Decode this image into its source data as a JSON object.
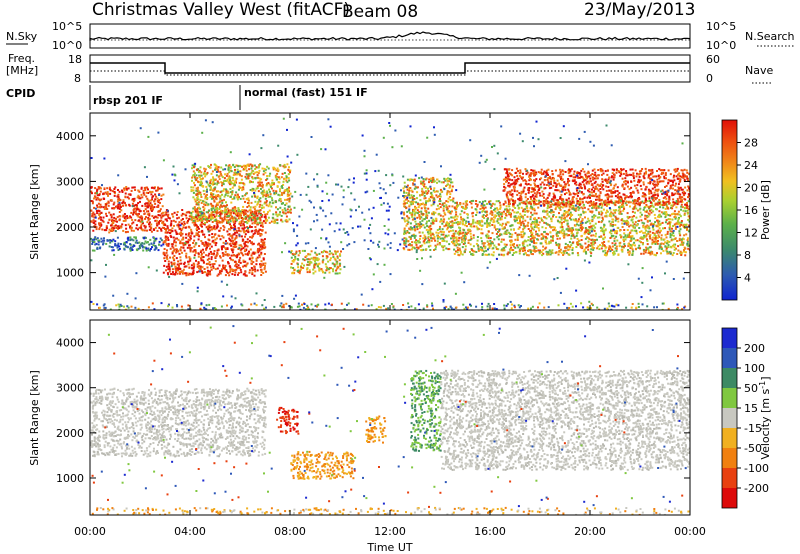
{
  "header": {
    "radar": "Christmas Valley West (fitACF)",
    "beam": "Beam 08",
    "date": "23/May/2013"
  },
  "panels": {
    "nsky": {
      "label": "N.Sky",
      "right_label": "N.Search",
      "ticks": [
        "10^5",
        "10^0"
      ],
      "right_ticks": [
        "10^5",
        "10^0"
      ]
    },
    "freq": {
      "label_line1": "Freq.",
      "label_line2": "[MHz]",
      "right_label": "Nave",
      "ticks": [
        "18",
        "8"
      ],
      "right_ticks": [
        "60",
        "0"
      ]
    },
    "cpid": {
      "label": "CPID",
      "segments": [
        {
          "label": "rbsp 201 IF",
          "start_hour": 0
        },
        {
          "label": "normal (fast) 151 IF",
          "start_hour": 6
        }
      ]
    }
  },
  "axes": {
    "ylabel": "Slant Range [km]",
    "xlabel": "Time UT",
    "x_ticks": [
      "00:00",
      "04:00",
      "08:00",
      "12:00",
      "16:00",
      "20:00",
      "00:00"
    ],
    "y_ticks": [
      "1000",
      "2000",
      "3000",
      "4000"
    ]
  },
  "power_scale": {
    "label": "Power [dB]",
    "ticks": [
      "4",
      "8",
      "12",
      "16",
      "20",
      "24",
      "28"
    ],
    "colors": [
      "#1024d0",
      "#2d5bb0",
      "#3c8a6c",
      "#5bb04a",
      "#a8d030",
      "#f0c020",
      "#f08018",
      "#ee5010",
      "#e01008"
    ]
  },
  "velocity_scale": {
    "label_prefix": "Velocity [m s",
    "label_sup": "-1",
    "label_suffix": "]",
    "ticks": [
      "200",
      "100",
      "50",
      "15",
      "-15",
      "-50",
      "-100",
      "-200"
    ],
    "colors": [
      "#1c2ad0",
      "#2e58b8",
      "#3d8a64",
      "#80c840",
      "#c8c8c0",
      "#f0b020",
      "#f08010",
      "#e84010",
      "#dd0a0a"
    ]
  },
  "chart_data": {
    "type": "heatmap",
    "x_range_hours": [
      0,
      24
    ],
    "y_range_km": [
      180,
      4500
    ],
    "power_bands": [
      {
        "from_h": 0.0,
        "to_h": 2.9,
        "lo_km": 1900,
        "hi_km": 2900,
        "value": "high"
      },
      {
        "from_h": 0.0,
        "to_h": 2.9,
        "lo_km": 1500,
        "hi_km": 1800,
        "value": "low"
      },
      {
        "from_h": 2.9,
        "to_h": 7.0,
        "lo_km": 950,
        "hi_km": 2400,
        "value": "high"
      },
      {
        "from_h": 4.0,
        "to_h": 8.0,
        "lo_km": 2100,
        "hi_km": 3400,
        "value": "mid"
      },
      {
        "from_h": 8.0,
        "to_h": 10.0,
        "lo_km": 1000,
        "hi_km": 1500,
        "value": "mid"
      },
      {
        "from_h": 12.5,
        "to_h": 14.5,
        "lo_km": 1500,
        "hi_km": 3100,
        "value": "mid"
      },
      {
        "from_h": 14.5,
        "to_h": 24.0,
        "lo_km": 1400,
        "hi_km": 2600,
        "value": "mid"
      },
      {
        "from_h": 16.5,
        "to_h": 24.0,
        "lo_km": 2500,
        "hi_km": 3300,
        "value": "high"
      }
    ],
    "velocity_bands": [
      {
        "from_h": 0.0,
        "to_h": 7.0,
        "lo_km": 1500,
        "hi_km": 3000,
        "value": "-15..15"
      },
      {
        "from_h": 7.5,
        "to_h": 8.3,
        "lo_km": 2000,
        "hi_km": 2600,
        "value": "-200"
      },
      {
        "from_h": 8.0,
        "to_h": 10.5,
        "lo_km": 1000,
        "hi_km": 1600,
        "value": "-100"
      },
      {
        "from_h": 11.0,
        "to_h": 11.8,
        "lo_km": 1800,
        "hi_km": 2400,
        "value": "-100"
      },
      {
        "from_h": 12.8,
        "to_h": 14.0,
        "lo_km": 1600,
        "hi_km": 3400,
        "value": "50"
      },
      {
        "from_h": 14.0,
        "to_h": 24.0,
        "lo_km": 1200,
        "hi_km": 3400,
        "value": "-15..15"
      }
    ]
  }
}
